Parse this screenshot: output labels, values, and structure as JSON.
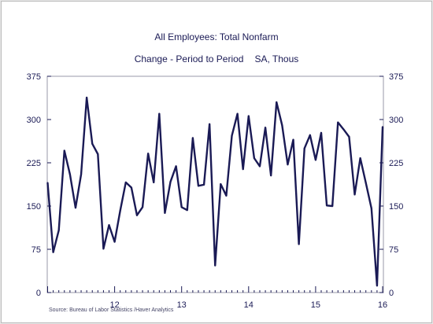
{
  "header": {
    "title": "All Employees: Total Nonfarm",
    "subtitle_left": "Change - Period to Period",
    "subtitle_right": "SA, Thous"
  },
  "source": "Source:  Bureau of Labor Statistics /Haver Analytics",
  "colors": {
    "line": "#1a1a55",
    "axis": "#1a1a55",
    "background": "#ffffff",
    "frame": "#e8e8e8"
  },
  "chart_data": {
    "type": "line",
    "title": "All Employees: Total Nonfarm",
    "subtitle": "Change - Period to Period    SA, Thous",
    "xlabel": "",
    "ylabel": "",
    "y_units": "SA, Thous",
    "ylim": [
      0,
      375
    ],
    "yticks": [
      0,
      75,
      150,
      225,
      300,
      375
    ],
    "yticks_right": [
      0,
      75,
      150,
      225,
      300,
      375
    ],
    "xlim": [
      "2011-01",
      "2016-01"
    ],
    "xticks": [
      {
        "label": "12",
        "at": "2012-01"
      },
      {
        "label": "13",
        "at": "2013-01"
      },
      {
        "label": "14",
        "at": "2014-01"
      },
      {
        "label": "15",
        "at": "2015-01"
      },
      {
        "label": "16",
        "at": "2016-01"
      }
    ],
    "grid": false,
    "legend": "none",
    "series": [
      {
        "name": "",
        "x": [
          "2011-01",
          "2011-02",
          "2011-03",
          "2011-04",
          "2011-05",
          "2011-06",
          "2011-07",
          "2011-08",
          "2011-09",
          "2011-10",
          "2011-11",
          "2011-12",
          "2012-01",
          "2012-02",
          "2012-03",
          "2012-04",
          "2012-05",
          "2012-06",
          "2012-07",
          "2012-08",
          "2012-09",
          "2012-10",
          "2012-11",
          "2012-12",
          "2013-01",
          "2013-02",
          "2013-03",
          "2013-04",
          "2013-05",
          "2013-06",
          "2013-07",
          "2013-08",
          "2013-09",
          "2013-10",
          "2013-11",
          "2013-12",
          "2014-01",
          "2014-02",
          "2014-03",
          "2014-04",
          "2014-05",
          "2014-06",
          "2014-07",
          "2014-08",
          "2014-09",
          "2014-10",
          "2014-11",
          "2014-12",
          "2015-01",
          "2015-02",
          "2015-03",
          "2015-04",
          "2015-05",
          "2015-06",
          "2015-07",
          "2015-08",
          "2015-09",
          "2015-10",
          "2015-11",
          "2015-12",
          "2016-01"
        ],
        "values": [
          190,
          70,
          108,
          246,
          205,
          147,
          205,
          338,
          258,
          240,
          76,
          117,
          88,
          142,
          191,
          182,
          134,
          148,
          241,
          191,
          310,
          138,
          192,
          219,
          148,
          143,
          268,
          185,
          187,
          292,
          47,
          188,
          168,
          272,
          310,
          214,
          306,
          233,
          219,
          286,
          203,
          330,
          290,
          222,
          265,
          84,
          250,
          273,
          230,
          277,
          151,
          150,
          295,
          283,
          270,
          170,
          233,
          190,
          146,
          12,
          287
        ]
      }
    ]
  }
}
